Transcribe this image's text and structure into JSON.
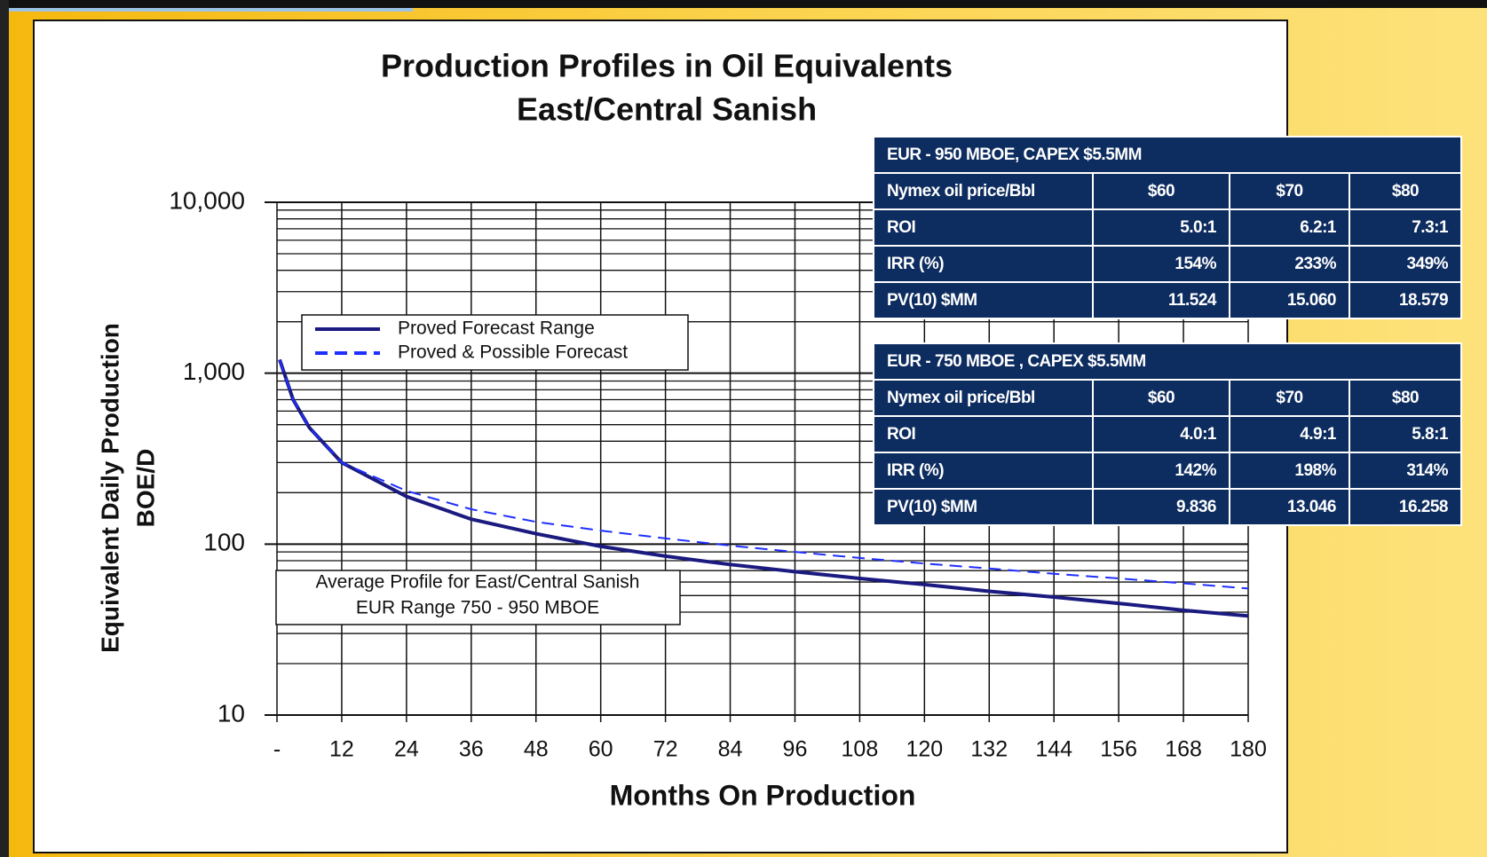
{
  "chart_data": {
    "type": "line",
    "title": "Production Profiles in Oil Equivalents",
    "subtitle": "East/Central Sanish",
    "x_label": "Months On Production",
    "y_label": [
      "Equivalent Daily Production",
      "BOE/D"
    ],
    "log_y": true,
    "grid": true,
    "x": [
      0.5,
      3,
      6,
      12,
      24,
      36,
      48,
      60,
      72,
      84,
      96,
      108,
      120,
      132,
      144,
      156,
      168,
      180
    ],
    "series": [
      {
        "name": "Proved Forecast Range",
        "color": "#1a1a80",
        "style": "solid",
        "values": [
          1200,
          700,
          480,
          300,
          190,
          140,
          115,
          97,
          85,
          76,
          69,
          63,
          58,
          53,
          49,
          45,
          41,
          38
        ]
      },
      {
        "name": "Proved & Possible Forecast",
        "color": "#1f2fff",
        "style": "dashed",
        "values": [
          1200,
          700,
          480,
          300,
          205,
          160,
          135,
          120,
          108,
          98,
          90,
          83,
          77,
          72,
          67,
          63,
          59,
          55
        ]
      }
    ],
    "xlim": [
      0,
      180
    ],
    "xticks": [
      {
        "value": 0,
        "label": "-"
      },
      12,
      24,
      36,
      48,
      60,
      72,
      84,
      96,
      108,
      120,
      132,
      144,
      156,
      168,
      180
    ],
    "ylim": [
      10,
      10000
    ],
    "yticks": [
      10,
      100,
      {
        "value": 1000,
        "label": "1,000"
      },
      {
        "value": 10000,
        "label": "10,000"
      }
    ],
    "y_minor_ticks": [
      20,
      30,
      40,
      50,
      60,
      70,
      80,
      90,
      200,
      300,
      400,
      500,
      600,
      700,
      800,
      900,
      2000,
      3000,
      4000,
      5000,
      6000,
      7000,
      8000,
      9000
    ],
    "annotation": [
      "Average Profile for East/Central Sanish",
      "EUR Range 750 - 950 MBOE"
    ]
  },
  "tables": [
    {
      "header": "EUR - 950 MBOE, CAPEX $5.5MM",
      "rows": [
        [
          "Nymex oil price/Bbl",
          "$60",
          "$70",
          "$80"
        ],
        [
          "ROI",
          "5.0:1",
          "6.2:1",
          "7.3:1"
        ],
        [
          "IRR (%)",
          "154%",
          "233%",
          "349%"
        ],
        [
          "PV(10) $MM",
          "11.524",
          "15.060",
          "18.579"
        ]
      ]
    },
    {
      "header": "EUR - 750 MBOE , CAPEX $5.5MM",
      "rows": [
        [
          "Nymex oil price/Bbl",
          "$60",
          "$70",
          "$80"
        ],
        [
          "ROI",
          "4.0:1",
          "4.9:1",
          "5.8:1"
        ],
        [
          "IRR (%)",
          "142%",
          "198%",
          "314%"
        ],
        [
          "PV(10) $MM",
          "9.836",
          "13.046",
          "16.258"
        ]
      ]
    }
  ]
}
